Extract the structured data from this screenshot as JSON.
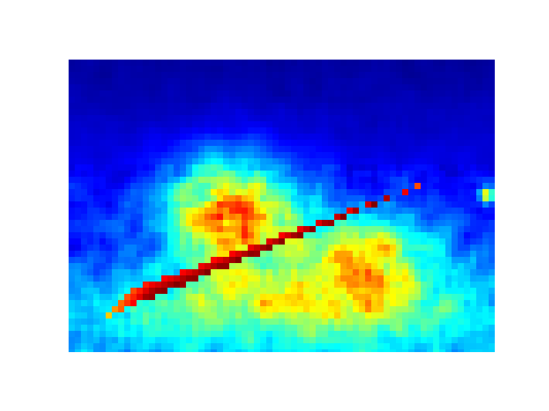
{
  "chart_data": {
    "type": "heatmap",
    "colormap": "jet",
    "colormap_stops": [
      "#00007f",
      "#0000ff",
      "#007fff",
      "#00ffff",
      "#7fff7f",
      "#ffff00",
      "#ff7f00",
      "#ff0000",
      "#7f0000"
    ],
    "axes_visible": false,
    "grid": false,
    "legend": "none",
    "title": "",
    "xlabel": "",
    "ylabel": "",
    "field": {
      "value_range": [
        0,
        1
      ],
      "background": {
        "top_value": 0.03,
        "bottom_value": 0.3
      },
      "blobs": [
        {
          "name": "left-hot-region",
          "x": 0.38,
          "y": 0.52,
          "rx": 0.18,
          "ry": 0.22,
          "peak": 0.62
        },
        {
          "name": "right-warm-region",
          "x": 0.7,
          "y": 0.68,
          "rx": 0.2,
          "ry": 0.2,
          "peak": 0.42
        },
        {
          "name": "lower-band",
          "x": 0.5,
          "y": 0.84,
          "rx": 0.48,
          "ry": 0.14,
          "peak": 0.28
        },
        {
          "name": "right-small-blob",
          "x": 0.98,
          "y": 0.46,
          "rx": 0.02,
          "ry": 0.03,
          "peak": 0.5
        }
      ],
      "wedge": {
        "tip": [
          0.87,
          0.4
        ],
        "base_top": [
          0.14,
          0.78
        ],
        "base_bottom": [
          0.07,
          0.88
        ],
        "ridge_base": [
          0.12,
          0.84
        ],
        "tip_value": 0.7,
        "ridge_value": 1.0,
        "edge_value": 0.82,
        "base_value": 0.62
      }
    }
  }
}
